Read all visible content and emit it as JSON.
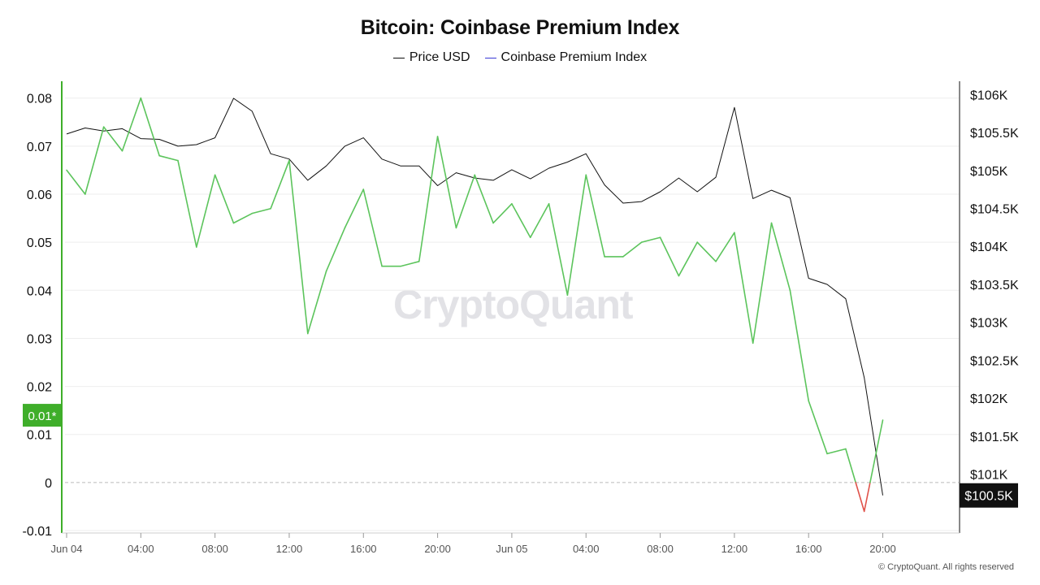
{
  "colors": {
    "price_line": "#111111",
    "premium_positive": "#5cc45c",
    "premium_negative": "#e0524a",
    "left_axis": "#3fae2a",
    "right_badge_bg": "#111111",
    "grid": "#eeeeee"
  },
  "chart_data": {
    "type": "line",
    "title": "Bitcoin: Coinbase Premium Index",
    "legend": [
      "Price USD",
      "Coinbase Premium Index"
    ],
    "legend_placement": "top-center",
    "x_tick_labels": [
      "Jun 04",
      "04:00",
      "08:00",
      "12:00",
      "16:00",
      "20:00",
      "Jun 05",
      "04:00",
      "08:00",
      "12:00",
      "16:00",
      "20:00"
    ],
    "x_hours": [
      0,
      4,
      8,
      12,
      16,
      20,
      24,
      28,
      32,
      36,
      40,
      44
    ],
    "x_range_hours": [
      0,
      48
    ],
    "left_axis": {
      "ticks": [
        0.08,
        0.07,
        0.06,
        0.05,
        0.04,
        0.03,
        0.02,
        0.01,
        0,
        -0.01
      ],
      "tick_labels": [
        "0.08",
        "0.07",
        "0.06",
        "0.05",
        "0.04",
        "0.03",
        "0.02",
        "0.01",
        "0",
        "-0.01"
      ],
      "range": [
        -0.0105,
        0.0835
      ],
      "current_label": "0.01*"
    },
    "right_axis": {
      "ticks": [
        106000,
        105500,
        105000,
        104500,
        104000,
        103500,
        103000,
        102500,
        102000,
        101500,
        101000
      ],
      "tick_labels": [
        "$106K",
        "$105.5K",
        "$105K",
        "$104.5K",
        "$104K",
        "$103.5K",
        "$103K",
        "$102.5K",
        "$102K",
        "$101.5K",
        "$101K"
      ],
      "range": [
        100225,
        106175
      ],
      "current_label": "$100.5K"
    },
    "grid": true,
    "series": [
      {
        "name": "Price USD",
        "axis": "right",
        "x": [
          0,
          1,
          2,
          3,
          4,
          5,
          6,
          7,
          8,
          9,
          10,
          11,
          12,
          13,
          14,
          15,
          16,
          17,
          18,
          19,
          20,
          21,
          22,
          23,
          24,
          25,
          26,
          27,
          28,
          29,
          30,
          31,
          32,
          33,
          34,
          35,
          36,
          37,
          38,
          39,
          40,
          41,
          42,
          43,
          44
        ],
        "values": [
          105480,
          105560,
          105520,
          105550,
          105420,
          105410,
          105320,
          105340,
          105430,
          105950,
          105780,
          105220,
          105150,
          104870,
          105060,
          105320,
          105430,
          105150,
          105060,
          105060,
          104800,
          104970,
          104900,
          104870,
          105010,
          104890,
          105030,
          105110,
          105220,
          104810,
          104570,
          104590,
          104720,
          104900,
          104720,
          104910,
          105830,
          104630,
          104740,
          104640,
          103580,
          103500,
          103310,
          102270,
          100720
        ]
      },
      {
        "name": "Coinbase Premium Index",
        "axis": "left",
        "x": [
          0,
          1,
          2,
          3,
          4,
          5,
          6,
          7,
          8,
          9,
          10,
          11,
          12,
          13,
          14,
          15,
          16,
          17,
          18,
          19,
          20,
          21,
          22,
          23,
          24,
          25,
          26,
          27,
          28,
          29,
          30,
          31,
          32,
          33,
          34,
          35,
          36,
          37,
          38,
          39,
          40,
          41,
          42,
          43,
          44
        ],
        "values": [
          0.065,
          0.06,
          0.074,
          0.069,
          0.08,
          0.068,
          0.067,
          0.049,
          0.064,
          0.054,
          0.056,
          0.057,
          0.067,
          0.031,
          0.044,
          0.053,
          0.061,
          0.045,
          0.045,
          0.046,
          0.072,
          0.053,
          0.064,
          0.054,
          0.058,
          0.051,
          0.058,
          0.039,
          0.064,
          0.047,
          0.047,
          0.05,
          0.051,
          0.043,
          0.05,
          0.046,
          0.052,
          0.029,
          0.054,
          0.04,
          0.017,
          0.006,
          0.007,
          -0.006,
          0.013
        ]
      }
    ]
  },
  "copyright": "© CryptoQuant. All rights reserved",
  "watermark": "CryptoQuant"
}
